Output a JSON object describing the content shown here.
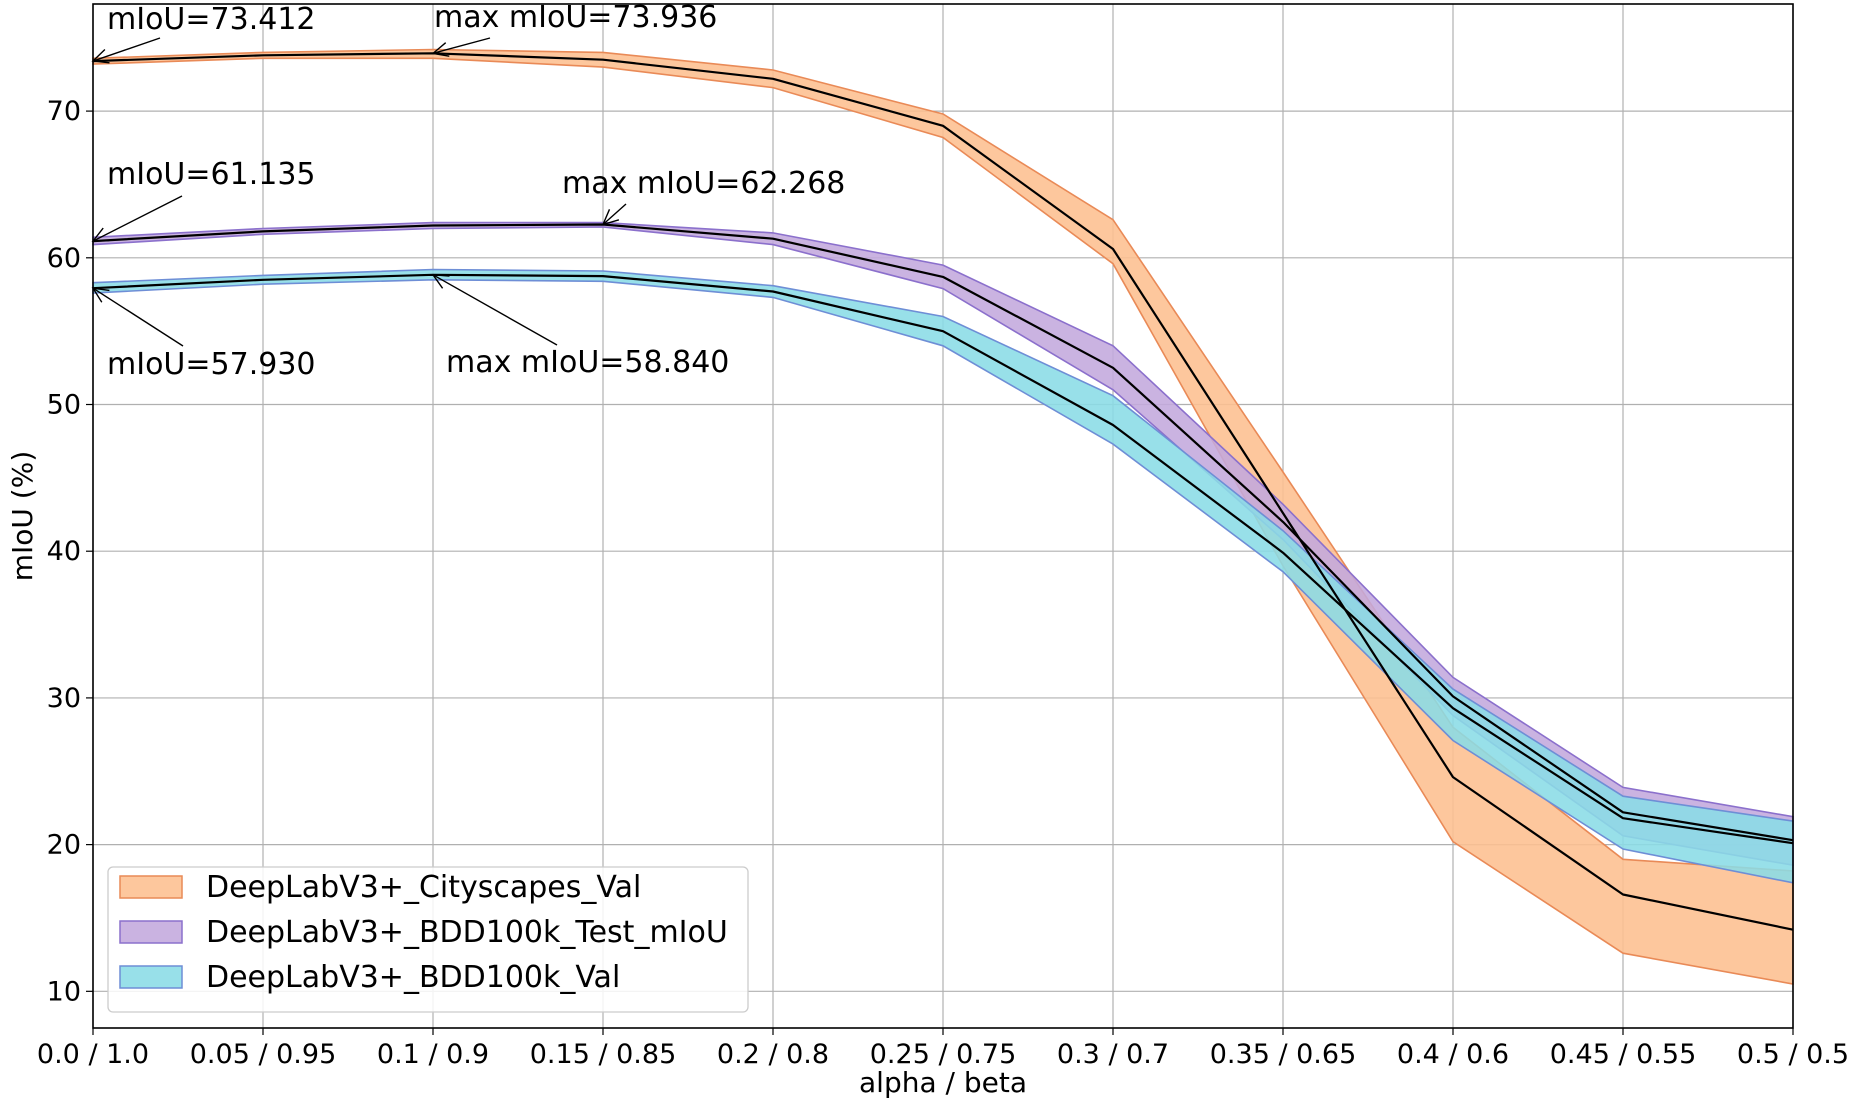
{
  "chart_data": {
    "type": "line",
    "xlabel": "alpha / beta",
    "ylabel": "mIoU (%)",
    "categories": [
      "0.0 / 1.0",
      "0.05 / 0.95",
      "0.1 / 0.9",
      "0.15 / 0.85",
      "0.2 / 0.8",
      "0.25 / 0.75",
      "0.3 / 0.7",
      "0.35 / 0.65",
      "0.4 / 0.6",
      "0.45 / 0.55",
      "0.5 / 0.5"
    ],
    "ylim": [
      7.5,
      77.3
    ],
    "yticks": [
      10,
      20,
      30,
      40,
      50,
      60,
      70
    ],
    "grid": true,
    "legend_position": "lower-left",
    "series": [
      {
        "name": "DeepLabV3+_Cityscapes_Val",
        "fill": "#fdbf8f",
        "edge": "#e98a57",
        "values": [
          73.41,
          73.8,
          73.94,
          73.5,
          72.2,
          69.0,
          60.6,
          42.6,
          24.6,
          16.6,
          14.2
        ],
        "upper": [
          73.6,
          74.0,
          74.2,
          74.0,
          72.8,
          69.8,
          62.6,
          45.4,
          28.0,
          19.0,
          18.2
        ],
        "lower": [
          73.2,
          73.6,
          73.6,
          73.0,
          71.6,
          68.2,
          59.6,
          39.0,
          20.2,
          12.6,
          10.5
        ]
      },
      {
        "name": "DeepLabV3+_BDD100k_Test_mIoU",
        "fill": "#c3a9dd",
        "edge": "#8b70cc",
        "values": [
          61.14,
          61.8,
          62.2,
          62.27,
          61.3,
          58.7,
          52.5,
          42.0,
          30.1,
          22.2,
          20.3
        ],
        "upper": [
          61.4,
          62.0,
          62.4,
          62.4,
          61.7,
          59.5,
          54.0,
          43.2,
          31.4,
          23.9,
          21.9
        ],
        "lower": [
          60.9,
          61.6,
          62.0,
          62.1,
          60.9,
          57.9,
          51.0,
          40.8,
          28.8,
          20.6,
          18.6
        ]
      },
      {
        "name": "DeepLabV3+_BDD100k_Val",
        "fill": "#8adce6",
        "edge": "#6e8ed6",
        "values": [
          57.93,
          58.5,
          58.84,
          58.75,
          57.7,
          55.0,
          48.6,
          39.9,
          29.3,
          21.8,
          20.1
        ],
        "upper": [
          58.3,
          58.8,
          59.2,
          59.1,
          58.1,
          56.0,
          50.6,
          41.4,
          30.6,
          23.3,
          21.6
        ],
        "lower": [
          57.6,
          58.2,
          58.5,
          58.4,
          57.3,
          54.0,
          47.3,
          38.6,
          27.1,
          19.7,
          17.4
        ]
      }
    ],
    "annotations": [
      {
        "text": "mIoU=73.412",
        "x": "0.0 / 1.0",
        "y": 73.412
      },
      {
        "text": "max mIoU=73.936",
        "x": "0.1 / 0.9",
        "y": 73.936
      },
      {
        "text": "mIoU=61.135",
        "x": "0.0 / 1.0",
        "y": 61.135
      },
      {
        "text": "max mIoU=62.268",
        "x": "0.15 / 0.85",
        "y": 62.268
      },
      {
        "text": "mIoU=57.930",
        "x": "0.0 / 1.0",
        "y": 57.93
      },
      {
        "text": "max mIoU=58.840",
        "x": "0.1 / 0.9",
        "y": 58.84
      }
    ]
  }
}
